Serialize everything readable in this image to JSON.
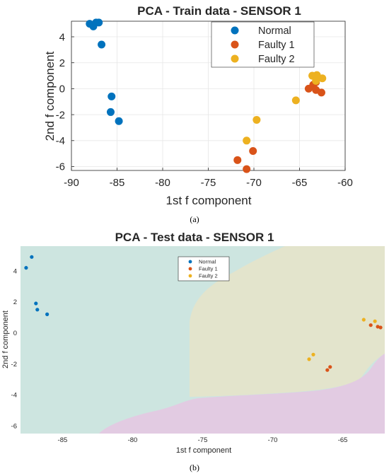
{
  "chart_data": [
    {
      "type": "scatter",
      "title": "PCA - Train data - SENSOR 1",
      "xlabel": "1st f component",
      "ylabel": "2nd f component",
      "xlim": [
        -90,
        -60
      ],
      "ylim": [
        -6.3,
        5.2
      ],
      "xticks": [
        "-90",
        "-85",
        "-80",
        "-75",
        "-70",
        "-65",
        "-60"
      ],
      "xtick_values": [
        -90,
        -85,
        -80,
        -75,
        -70,
        -65,
        -60
      ],
      "yticks": [
        "4",
        "2",
        "0",
        "-2",
        "-4",
        "-6"
      ],
      "ytick_values": [
        4,
        2,
        0,
        -2,
        -4,
        -6
      ],
      "grid": true,
      "legend_position": "top-right",
      "caption": "(a)",
      "series": [
        {
          "name": "Normal",
          "color": "#0072BD",
          "points": [
            [
              -88,
              5.0
            ],
            [
              -87.6,
              4.8
            ],
            [
              -87.3,
              5.1
            ],
            [
              -87.0,
              5.1
            ],
            [
              -86.7,
              3.4
            ],
            [
              -85.6,
              -0.6
            ],
            [
              -85.7,
              -1.8
            ],
            [
              -84.8,
              -2.5
            ]
          ]
        },
        {
          "name": "Faulty 1",
          "color": "#D95319",
          "points": [
            [
              -71.8,
              -5.5
            ],
            [
              -70.8,
              -6.2
            ],
            [
              -70.1,
              -4.8
            ],
            [
              -64.0,
              0.0
            ],
            [
              -63.5,
              0.3
            ],
            [
              -63.2,
              -0.1
            ],
            [
              -62.6,
              -0.3
            ],
            [
              -63.2,
              0.5
            ]
          ]
        },
        {
          "name": "Faulty 2",
          "color": "#EDB120",
          "points": [
            [
              -70.8,
              -4.0
            ],
            [
              -69.7,
              -2.4
            ],
            [
              -65.4,
              -0.9
            ],
            [
              -63.6,
              1.0
            ],
            [
              -63.1,
              1.05
            ],
            [
              -62.5,
              0.8
            ],
            [
              -63.2,
              0.6
            ]
          ]
        }
      ]
    },
    {
      "type": "scatter",
      "title": "PCA - Test data - SENSOR 1",
      "xlabel": "1st f component",
      "ylabel": "2nd f component",
      "xlim": [
        -88,
        -62
      ],
      "ylim": [
        -6.5,
        5.6
      ],
      "xticks": [
        "-85",
        "-80",
        "-75",
        "-70",
        "-65"
      ],
      "xtick_values": [
        -85,
        -80,
        -75,
        -70,
        -65
      ],
      "yticks": [
        "4",
        "2",
        "0",
        "-2",
        "-4",
        "-6"
      ],
      "ytick_values": [
        4,
        2,
        0,
        -2,
        -4,
        -6
      ],
      "grid": false,
      "legend_position": "top-center",
      "caption": "(b)",
      "regions": [
        {
          "class": "Normal",
          "color": "#CDE5E0"
        },
        {
          "class": "Faulty 1",
          "color": "#E2CBE2"
        },
        {
          "class": "Faulty 2",
          "color": "#E3E4CC"
        }
      ],
      "series": [
        {
          "name": "Normal",
          "color": "#0072BD",
          "points": [
            [
              -87.6,
              4.2
            ],
            [
              -87.2,
              4.9
            ],
            [
              -86.9,
              1.9
            ],
            [
              -86.8,
              1.5
            ],
            [
              -86.1,
              1.2
            ]
          ]
        },
        {
          "name": "Faulty 1",
          "color": "#D95319",
          "points": [
            [
              -66.1,
              -2.4
            ],
            [
              -65.9,
              -2.2
            ],
            [
              -63.0,
              0.5
            ],
            [
              -62.5,
              0.4
            ],
            [
              -62.3,
              0.35
            ]
          ]
        },
        {
          "name": "Faulty 2",
          "color": "#EDB120",
          "points": [
            [
              -67.4,
              -1.7
            ],
            [
              -67.1,
              -1.4
            ],
            [
              -63.5,
              0.85
            ],
            [
              -62.7,
              0.75
            ]
          ]
        }
      ]
    }
  ]
}
